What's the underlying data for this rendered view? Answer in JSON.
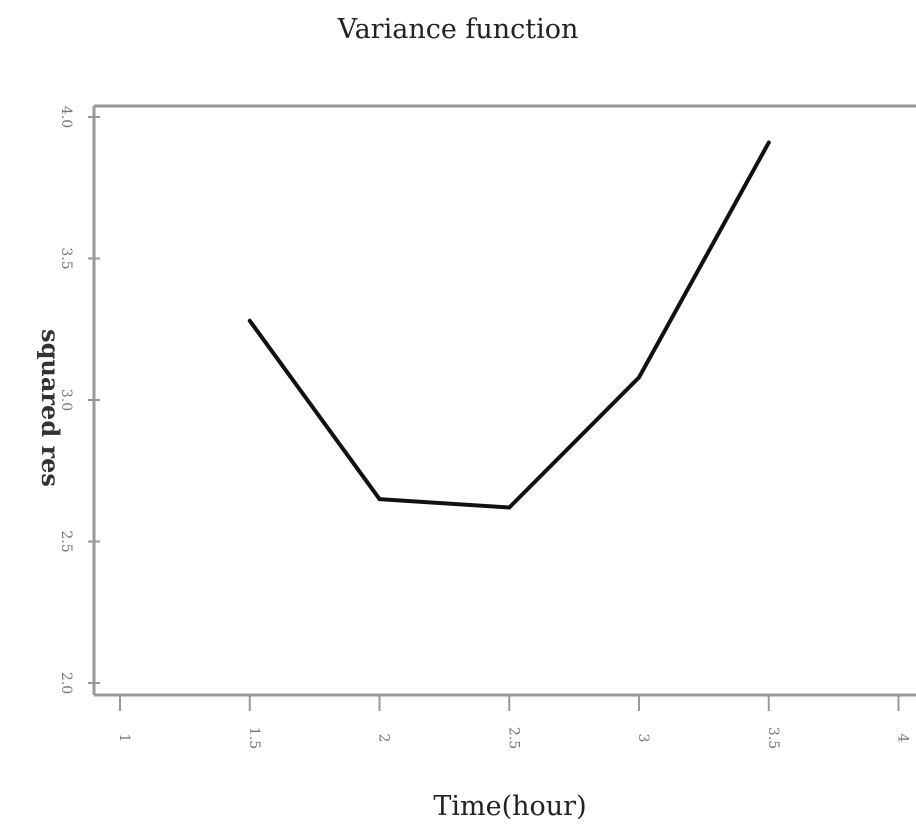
{
  "chart_data": {
    "type": "line",
    "title": "Variance function",
    "xlabel": "Time(hour)",
    "ylabel": "squared res",
    "x_ticks": [
      1,
      1.5,
      2,
      2.5,
      3,
      3.5,
      4
    ],
    "x_tick_labels": [
      "1",
      "1.5",
      "2",
      "2.5",
      "3",
      "3.5",
      "4"
    ],
    "y_ticks": [
      2.0,
      2.5,
      3.0,
      3.5,
      4.0
    ],
    "y_tick_labels": [
      "2.0",
      "2.5",
      "3.0",
      "3.5",
      "4.0"
    ],
    "xlim": [
      1,
      4
    ],
    "ylim": [
      2.0,
      4.0
    ],
    "grid": false,
    "series": [
      {
        "x": [
          1.5,
          2.0,
          2.5,
          3.0,
          3.5
        ],
        "y": [
          3.28,
          2.65,
          2.62,
          3.08,
          3.91
        ]
      }
    ]
  }
}
